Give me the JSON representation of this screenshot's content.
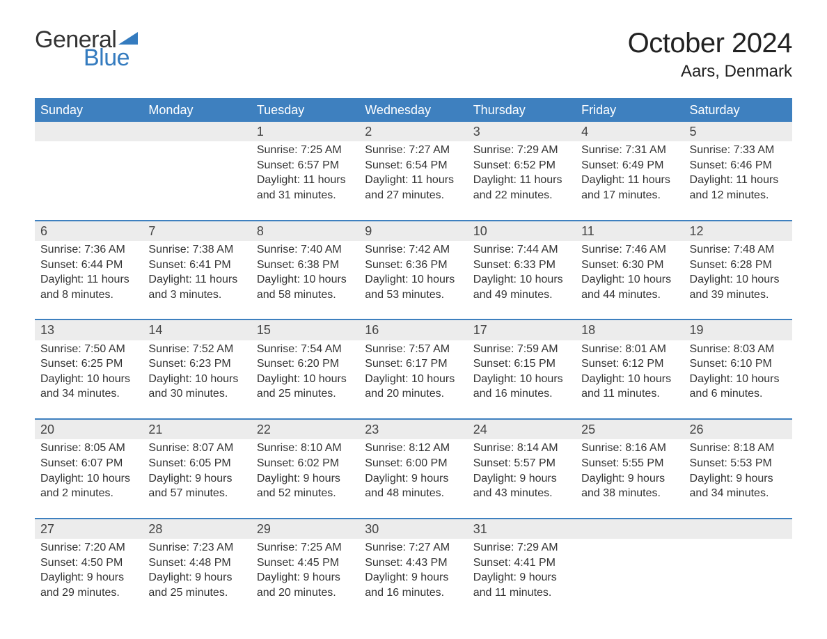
{
  "brand": {
    "word_general": "General",
    "word_blue": "Blue",
    "general_color": "#333333",
    "blue_color": "#347bbf",
    "pennant_color": "#347bbf"
  },
  "title": {
    "month_year": "October 2024",
    "location": "Aars, Denmark",
    "month_fontsize": 40,
    "location_fontsize": 24,
    "text_color": "#222222"
  },
  "calendar": {
    "header_bg": "#3e80bf",
    "header_text_color": "#ffffff",
    "row_separator_color": "#3e80bf",
    "daynum_bg": "#ececec",
    "body_text_color": "#333333",
    "body_fontsize": 16,
    "days_of_week": [
      "Sunday",
      "Monday",
      "Tuesday",
      "Wednesday",
      "Thursday",
      "Friday",
      "Saturday"
    ],
    "weeks": [
      [
        null,
        null,
        {
          "n": "1",
          "sunrise": "7:25 AM",
          "sunset": "6:57 PM",
          "daylight": "11 hours and 31 minutes."
        },
        {
          "n": "2",
          "sunrise": "7:27 AM",
          "sunset": "6:54 PM",
          "daylight": "11 hours and 27 minutes."
        },
        {
          "n": "3",
          "sunrise": "7:29 AM",
          "sunset": "6:52 PM",
          "daylight": "11 hours and 22 minutes."
        },
        {
          "n": "4",
          "sunrise": "7:31 AM",
          "sunset": "6:49 PM",
          "daylight": "11 hours and 17 minutes."
        },
        {
          "n": "5",
          "sunrise": "7:33 AM",
          "sunset": "6:46 PM",
          "daylight": "11 hours and 12 minutes."
        }
      ],
      [
        {
          "n": "6",
          "sunrise": "7:36 AM",
          "sunset": "6:44 PM",
          "daylight": "11 hours and 8 minutes."
        },
        {
          "n": "7",
          "sunrise": "7:38 AM",
          "sunset": "6:41 PM",
          "daylight": "11 hours and 3 minutes."
        },
        {
          "n": "8",
          "sunrise": "7:40 AM",
          "sunset": "6:38 PM",
          "daylight": "10 hours and 58 minutes."
        },
        {
          "n": "9",
          "sunrise": "7:42 AM",
          "sunset": "6:36 PM",
          "daylight": "10 hours and 53 minutes."
        },
        {
          "n": "10",
          "sunrise": "7:44 AM",
          "sunset": "6:33 PM",
          "daylight": "10 hours and 49 minutes."
        },
        {
          "n": "11",
          "sunrise": "7:46 AM",
          "sunset": "6:30 PM",
          "daylight": "10 hours and 44 minutes."
        },
        {
          "n": "12",
          "sunrise": "7:48 AM",
          "sunset": "6:28 PM",
          "daylight": "10 hours and 39 minutes."
        }
      ],
      [
        {
          "n": "13",
          "sunrise": "7:50 AM",
          "sunset": "6:25 PM",
          "daylight": "10 hours and 34 minutes."
        },
        {
          "n": "14",
          "sunrise": "7:52 AM",
          "sunset": "6:23 PM",
          "daylight": "10 hours and 30 minutes."
        },
        {
          "n": "15",
          "sunrise": "7:54 AM",
          "sunset": "6:20 PM",
          "daylight": "10 hours and 25 minutes."
        },
        {
          "n": "16",
          "sunrise": "7:57 AM",
          "sunset": "6:17 PM",
          "daylight": "10 hours and 20 minutes."
        },
        {
          "n": "17",
          "sunrise": "7:59 AM",
          "sunset": "6:15 PM",
          "daylight": "10 hours and 16 minutes."
        },
        {
          "n": "18",
          "sunrise": "8:01 AM",
          "sunset": "6:12 PM",
          "daylight": "10 hours and 11 minutes."
        },
        {
          "n": "19",
          "sunrise": "8:03 AM",
          "sunset": "6:10 PM",
          "daylight": "10 hours and 6 minutes."
        }
      ],
      [
        {
          "n": "20",
          "sunrise": "8:05 AM",
          "sunset": "6:07 PM",
          "daylight": "10 hours and 2 minutes."
        },
        {
          "n": "21",
          "sunrise": "8:07 AM",
          "sunset": "6:05 PM",
          "daylight": "9 hours and 57 minutes."
        },
        {
          "n": "22",
          "sunrise": "8:10 AM",
          "sunset": "6:02 PM",
          "daylight": "9 hours and 52 minutes."
        },
        {
          "n": "23",
          "sunrise": "8:12 AM",
          "sunset": "6:00 PM",
          "daylight": "9 hours and 48 minutes."
        },
        {
          "n": "24",
          "sunrise": "8:14 AM",
          "sunset": "5:57 PM",
          "daylight": "9 hours and 43 minutes."
        },
        {
          "n": "25",
          "sunrise": "8:16 AM",
          "sunset": "5:55 PM",
          "daylight": "9 hours and 38 minutes."
        },
        {
          "n": "26",
          "sunrise": "8:18 AM",
          "sunset": "5:53 PM",
          "daylight": "9 hours and 34 minutes."
        }
      ],
      [
        {
          "n": "27",
          "sunrise": "7:20 AM",
          "sunset": "4:50 PM",
          "daylight": "9 hours and 29 minutes."
        },
        {
          "n": "28",
          "sunrise": "7:23 AM",
          "sunset": "4:48 PM",
          "daylight": "9 hours and 25 minutes."
        },
        {
          "n": "29",
          "sunrise": "7:25 AM",
          "sunset": "4:45 PM",
          "daylight": "9 hours and 20 minutes."
        },
        {
          "n": "30",
          "sunrise": "7:27 AM",
          "sunset": "4:43 PM",
          "daylight": "9 hours and 16 minutes."
        },
        {
          "n": "31",
          "sunrise": "7:29 AM",
          "sunset": "4:41 PM",
          "daylight": "9 hours and 11 minutes."
        },
        null,
        null
      ]
    ],
    "labels": {
      "sunrise": "Sunrise:",
      "sunset": "Sunset:",
      "daylight": "Daylight:"
    }
  }
}
